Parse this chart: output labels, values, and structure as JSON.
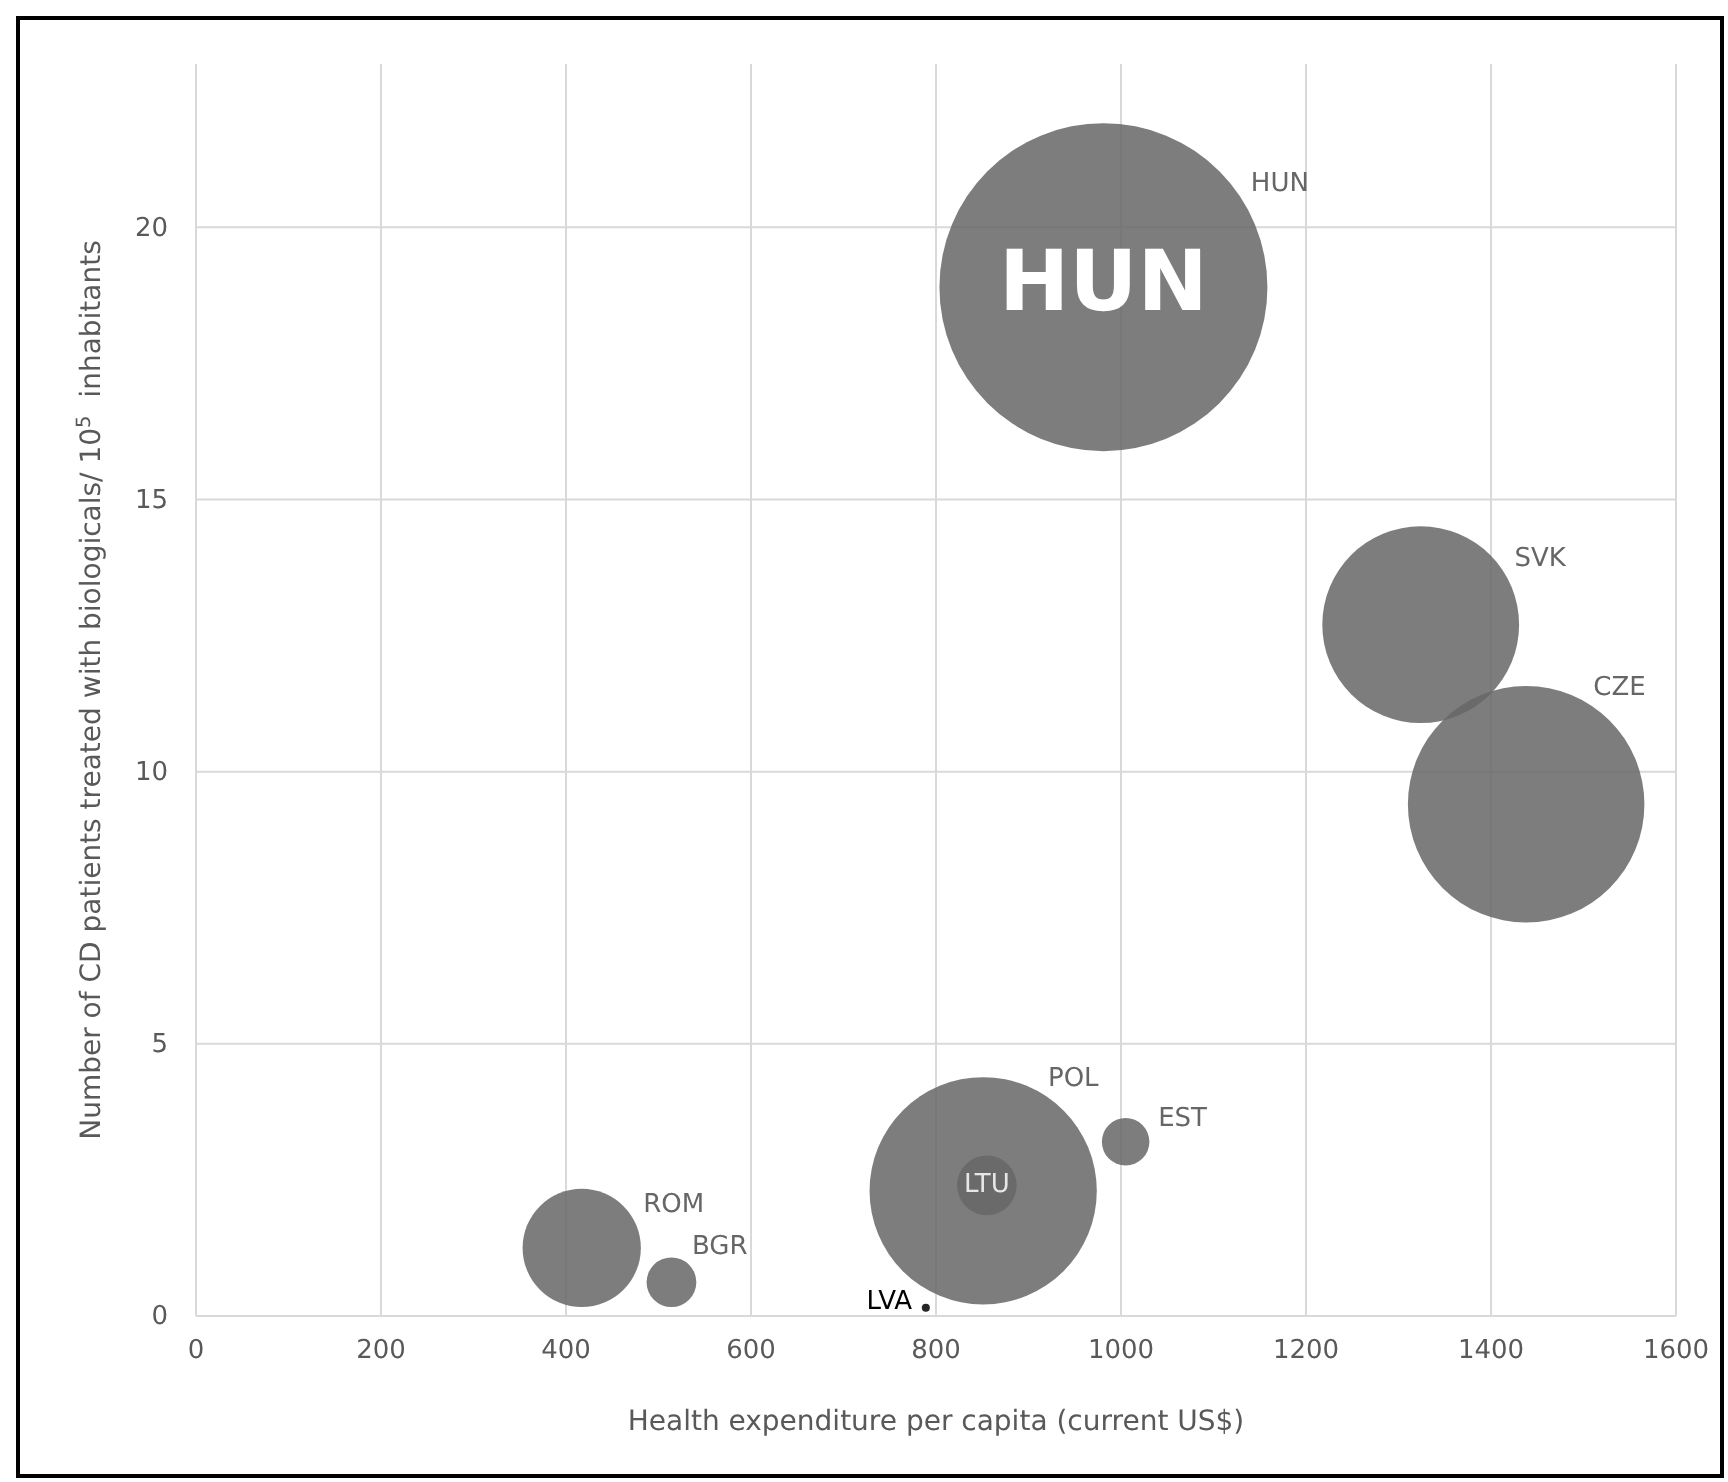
{
  "chart_data": {
    "type": "bubble",
    "xlabel": "Health expenditure per capita (current US$)",
    "ylabel": "Number of CD patients treated with biologicals/ 10$^{5}$  inhabitants",
    "xlim": [
      0,
      1600
    ],
    "xticks": [
      0,
      200,
      400,
      600,
      800,
      1000,
      1200,
      1400,
      1600
    ],
    "ylim": [
      0,
      23
    ],
    "yticks": [
      0,
      5,
      10,
      15,
      20
    ],
    "grid": true,
    "series": [
      {
        "name": "HUN",
        "color": "#666666",
        "x": [
          981
        ],
        "values": [
          18.9
        ],
        "sizes": [
          1
        ]
      },
      {
        "name": "SVK",
        "color": "#666666",
        "x": [
          1324
        ],
        "values": [
          12.7
        ],
        "sizes": [
          0.36
        ]
      },
      {
        "name": "CZE",
        "color": "#666666",
        "x": [
          1438
        ],
        "values": [
          9.4
        ],
        "sizes": [
          0.52
        ]
      },
      {
        "name": "POL",
        "color": "#666666",
        "x": [
          851
        ],
        "values": [
          2.3
        ],
        "sizes": [
          0.48
        ]
      },
      {
        "name": "LTU",
        "color": "#666666",
        "x": [
          855
        ],
        "values": [
          2.4
        ],
        "sizes": [
          0.033
        ]
      },
      {
        "name": "EST",
        "color": "#666666",
        "x": [
          1005
        ],
        "values": [
          3.2
        ],
        "sizes": [
          0.021
        ]
      },
      {
        "name": "ROM",
        "color": "#666666",
        "x": [
          417
        ],
        "values": [
          1.25
        ],
        "sizes": [
          0.13
        ]
      },
      {
        "name": "BGR",
        "color": "#666666",
        "x": [
          514
        ],
        "values": [
          0.62
        ],
        "sizes": [
          0.023
        ]
      },
      {
        "name": "LVA",
        "color": "#000000",
        "x": [
          789
        ],
        "values": [
          0.15
        ],
        "sizes": [
          0.0006
        ]
      }
    ],
    "annotations": [
      {
        "text": "HUN",
        "x": 981,
        "y": 18.9
      }
    ]
  }
}
